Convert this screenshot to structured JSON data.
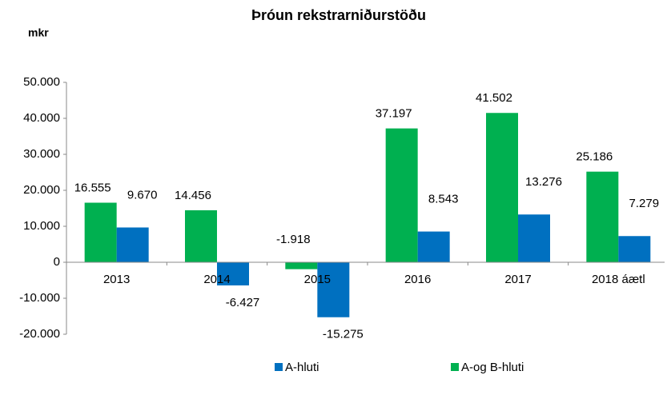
{
  "chart_data": {
    "type": "bar",
    "title": "Þróun rekstrarniðurstöðu",
    "y_label": "mkr",
    "categories": [
      "2013",
      "2014",
      "2015",
      "2016",
      "2017",
      "2018 áætl"
    ],
    "series": [
      {
        "name": "A-og B-hluti",
        "color": "#00b050",
        "values": [
          16555,
          14456,
          -1918,
          37197,
          41502,
          25186
        ],
        "value_labels": [
          "16.555",
          "14.456",
          "-1.918",
          "37.197",
          "41.502",
          "25.186"
        ]
      },
      {
        "name": "A-hluti",
        "color": "#0070c0",
        "values": [
          9670,
          -6427,
          -15275,
          8543,
          13276,
          7279
        ],
        "value_labels": [
          "9.670",
          "-6.427",
          "-15.275",
          "8.543",
          "13.276",
          "7.279"
        ]
      }
    ],
    "ylim": [
      -20000,
      50000
    ],
    "yticks": [
      {
        "value": -20000,
        "label": "-20.000"
      },
      {
        "value": -10000,
        "label": "-10.000"
      },
      0,
      {
        "value": 10000,
        "label": "10.000"
      },
      {
        "value": 20000,
        "label": "20.000"
      },
      {
        "value": 30000,
        "label": "30.000"
      },
      {
        "value": 40000,
        "label": "40.000"
      },
      {
        "value": 50000,
        "label": "50.000"
      }
    ],
    "grid": false,
    "legend": "bottom"
  }
}
